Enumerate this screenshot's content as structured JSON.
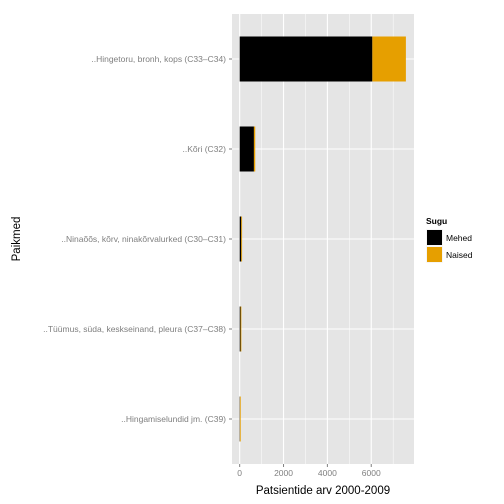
{
  "chart_data": {
    "type": "bar",
    "orientation": "horizontal",
    "stacked": true,
    "categories": [
      "..Hingetoru, bronh, kops (C33–C34)",
      "..Kõri (C32)",
      "..Ninaõõs, kõrv, ninakõrvalurked (C30–C31)",
      "..Tüümus, süda, keskseinand, pleura (C37–C38)",
      "..Hingamiselundid jm. (C39)"
    ],
    "series": [
      {
        "name": "Mehed",
        "color": "#000000",
        "values": [
          6050,
          650,
          70,
          40,
          10
        ]
      },
      {
        "name": "Naised",
        "color": "#E69F00",
        "values": [
          1530,
          60,
          40,
          15,
          5
        ]
      }
    ],
    "xlabel": "Patsientide arv 2000-2009",
    "ylabel": "Paikmed",
    "x_ticks": [
      "0",
      "2000",
      "4000",
      "6000"
    ],
    "xlim": [
      -350,
      7950
    ],
    "legend": {
      "title": "Sugu",
      "position": "right"
    },
    "grid": true,
    "panel_background": "#E5E5E5",
    "grid_color": "#FFFFFF"
  }
}
